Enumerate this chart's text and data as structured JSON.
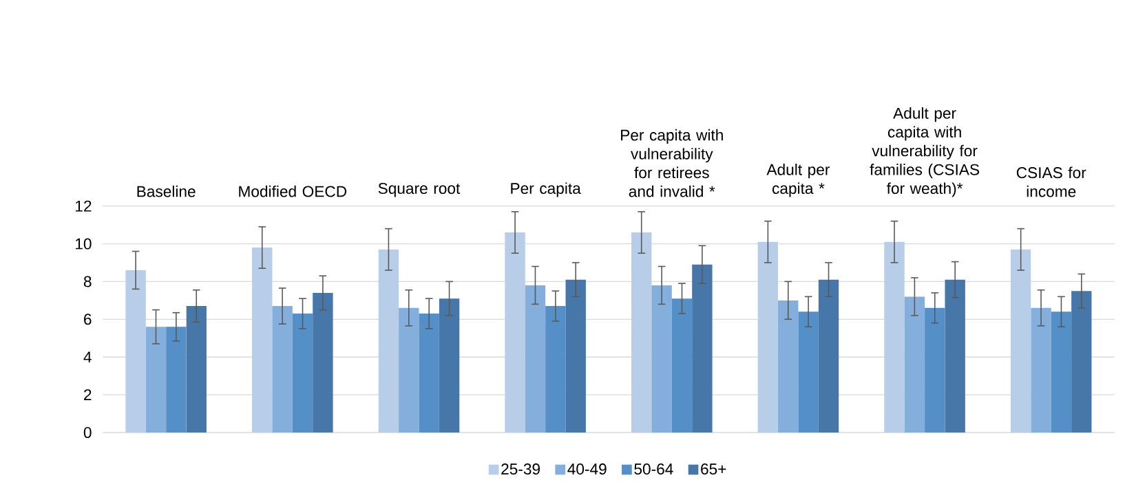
{
  "chart_data": {
    "type": "bar",
    "categories": [
      "Baseline",
      "Modified OECD",
      "Square root",
      "Per capita",
      "Per capita with vulnerability for retirees and invalid *",
      "Adult per capita *",
      "Adult per capita with vulnerability for families (CSIAS for weath)*",
      "CSIAS for income"
    ],
    "series": [
      {
        "name": "25-39",
        "color": "#b7cde8",
        "values": [
          8.6,
          9.8,
          9.7,
          10.6,
          10.6,
          10.1,
          10.1,
          9.7
        ],
        "errors": [
          1.0,
          1.1,
          1.1,
          1.1,
          1.1,
          1.1,
          1.1,
          1.1
        ]
      },
      {
        "name": "40-49",
        "color": "#84aedb",
        "values": [
          5.6,
          6.7,
          6.6,
          7.8,
          7.8,
          7.0,
          7.2,
          6.6
        ],
        "errors": [
          0.9,
          0.95,
          0.95,
          1.0,
          1.0,
          1.0,
          1.0,
          0.95
        ]
      },
      {
        "name": "50-64",
        "color": "#5490c7",
        "values": [
          5.6,
          6.3,
          6.3,
          6.7,
          7.1,
          6.4,
          6.6,
          6.4
        ],
        "errors": [
          0.75,
          0.8,
          0.8,
          0.8,
          0.8,
          0.8,
          0.8,
          0.8
        ]
      },
      {
        "name": "65+",
        "color": "#4677a8",
        "values": [
          6.7,
          7.4,
          7.1,
          8.1,
          8.9,
          8.1,
          8.1,
          7.5
        ],
        "errors": [
          0.85,
          0.9,
          0.9,
          0.9,
          1.0,
          0.9,
          0.95,
          0.9
        ]
      }
    ],
    "ylim": [
      0,
      12
    ],
    "yticks": [
      0,
      2,
      4,
      6,
      8,
      10,
      12
    ],
    "grid": "y",
    "legend": "bottom"
  }
}
